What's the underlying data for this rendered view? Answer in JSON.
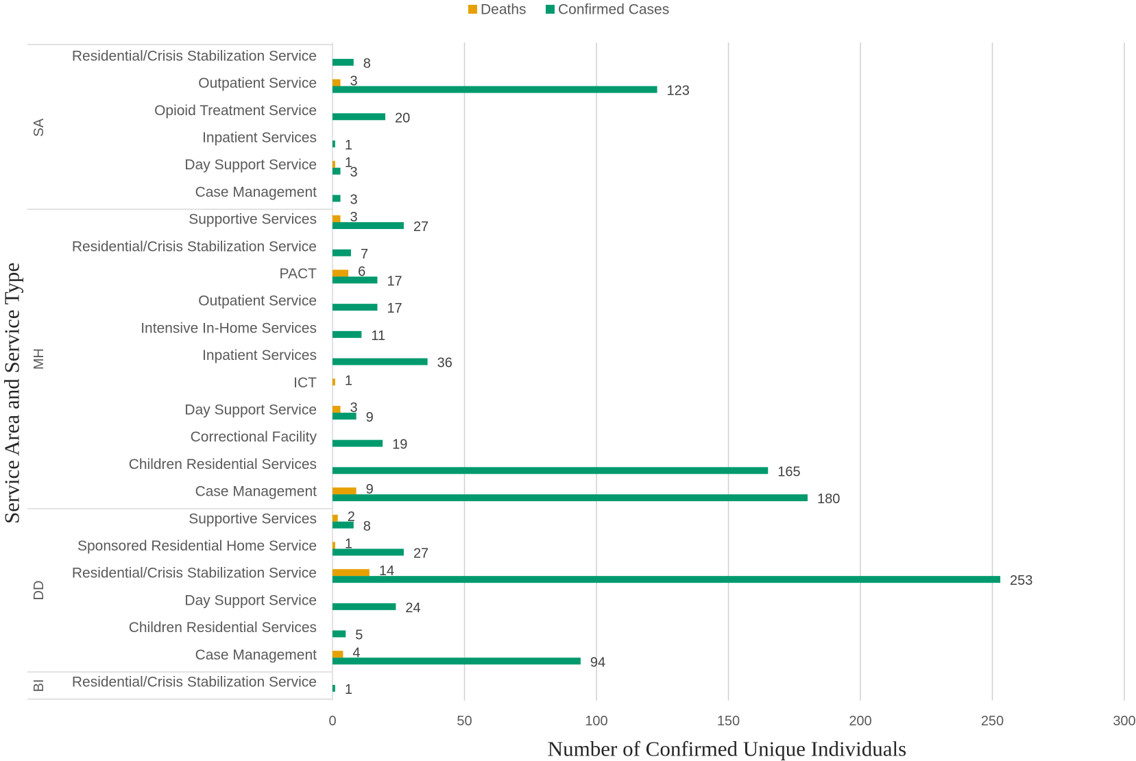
{
  "chart_data": {
    "type": "bar",
    "orientation": "horizontal",
    "xlabel": "Number of Confirmed Unique Individuals",
    "ylabel": "Service Area and Service Type",
    "xlim": [
      0,
      300
    ],
    "xticks": [
      0,
      50,
      100,
      150,
      200,
      250,
      300
    ],
    "grid": "vertical",
    "legend": {
      "placement": "top",
      "entries": [
        "Deaths",
        "Confirmed Cases"
      ]
    },
    "colors": {
      "Deaths": "#E6A100",
      "Confirmed Cases": "#009A6E"
    },
    "groups": [
      {
        "name": "SA",
        "categories": [
          {
            "label": "Residential/Crisis Stabilization Service",
            "deaths": null,
            "confirmed": 8
          },
          {
            "label": "Outpatient Service",
            "deaths": 3,
            "confirmed": 123
          },
          {
            "label": "Opioid Treatment Service",
            "deaths": null,
            "confirmed": 20
          },
          {
            "label": "Inpatient Services",
            "deaths": null,
            "confirmed": 1
          },
          {
            "label": "Day Support Service",
            "deaths": 1,
            "confirmed": 3
          },
          {
            "label": "Case Management",
            "deaths": null,
            "confirmed": 3
          }
        ]
      },
      {
        "name": "MH",
        "categories": [
          {
            "label": "Supportive Services",
            "deaths": 3,
            "confirmed": 27
          },
          {
            "label": "Residential/Crisis Stabilization Service",
            "deaths": null,
            "confirmed": 7
          },
          {
            "label": "PACT",
            "deaths": 6,
            "confirmed": 17
          },
          {
            "label": "Outpatient Service",
            "deaths": null,
            "confirmed": 17
          },
          {
            "label": "Intensive In-Home Services",
            "deaths": null,
            "confirmed": 11
          },
          {
            "label": "Inpatient Services",
            "deaths": null,
            "confirmed": 36
          },
          {
            "label": "ICT",
            "deaths": 1,
            "confirmed": null
          },
          {
            "label": "Day Support Service",
            "deaths": 3,
            "confirmed": 9
          },
          {
            "label": "Correctional Facility",
            "deaths": null,
            "confirmed": 19
          },
          {
            "label": "Children Residential Services",
            "deaths": null,
            "confirmed": 165
          },
          {
            "label": "Case Management",
            "deaths": 9,
            "confirmed": 180
          }
        ]
      },
      {
        "name": "DD",
        "categories": [
          {
            "label": "Supportive Services",
            "deaths": 2,
            "confirmed": 8
          },
          {
            "label": "Sponsored Residential Home Service",
            "deaths": 1,
            "confirmed": 27
          },
          {
            "label": "Residential/Crisis Stabilization Service",
            "deaths": 14,
            "confirmed": 253
          },
          {
            "label": "Day Support Service",
            "deaths": null,
            "confirmed": 24
          },
          {
            "label": "Children Residential Services",
            "deaths": null,
            "confirmed": 5
          },
          {
            "label": "Case Management",
            "deaths": 4,
            "confirmed": 94
          }
        ]
      },
      {
        "name": "BI",
        "categories": [
          {
            "label": "Residential/Crisis Stabilization Service",
            "deaths": null,
            "confirmed": 1
          }
        ]
      }
    ]
  }
}
